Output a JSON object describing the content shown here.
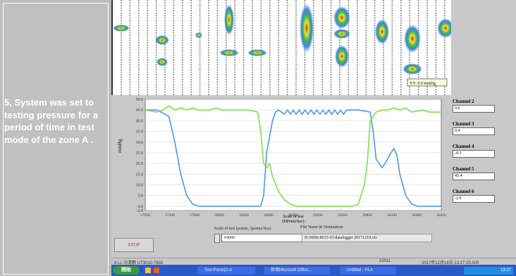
{
  "caption": {
    "text": "5, System was set to testing pressure for a period of time in test mode of the zone A ."
  },
  "heatmap": {
    "readout": "YV: 0.0 mmHg"
  },
  "chart_data": {
    "type": "line",
    "ylabel": "mmHg",
    "ylim": [
      -2.0,
      50.0
    ],
    "y_ticks": [
      "50.0",
      "45.0",
      "40.0",
      "35.0",
      "30.0",
      "25.0",
      "20.0",
      "15.0",
      "10.0",
      "5.0",
      "0.0",
      "-2.0"
    ],
    "x_ticks": [
      "27050",
      "27300",
      "27600",
      "28000",
      "28300",
      "28600",
      "28900",
      "29200",
      "29500",
      "29800",
      "30100",
      "30400",
      "30450"
    ],
    "xlabel": "Scale of test",
    "xlabel2": "(DPoint/Sec)",
    "series": [
      {
        "color": "#4c9be0",
        "values": [
          [
            0,
            45
          ],
          [
            4,
            45
          ],
          [
            8,
            42
          ],
          [
            10,
            30
          ],
          [
            12,
            15
          ],
          [
            14,
            5
          ],
          [
            16,
            1
          ],
          [
            18,
            0
          ],
          [
            31,
            0
          ],
          [
            39,
            0
          ],
          [
            40,
            5
          ],
          [
            41,
            25
          ],
          [
            43,
            40
          ],
          [
            44,
            44
          ],
          [
            45,
            45
          ],
          [
            47,
            43
          ],
          [
            48,
            45
          ],
          [
            49,
            43
          ],
          [
            50,
            45
          ],
          [
            51,
            43
          ],
          [
            52,
            45
          ],
          [
            53,
            43
          ],
          [
            54,
            45
          ],
          [
            55,
            43
          ],
          [
            56,
            45
          ],
          [
            57,
            43
          ],
          [
            58,
            45
          ],
          [
            59,
            43
          ],
          [
            60,
            45
          ],
          [
            61,
            43
          ],
          [
            62,
            45
          ],
          [
            63,
            43
          ],
          [
            64,
            45
          ],
          [
            65,
            43
          ],
          [
            66,
            45
          ],
          [
            67,
            43
          ],
          [
            68,
            45
          ],
          [
            72,
            45
          ],
          [
            76,
            44
          ],
          [
            77,
            35
          ],
          [
            78,
            22
          ],
          [
            80,
            18
          ],
          [
            81,
            20
          ],
          [
            83,
            25
          ],
          [
            84,
            27
          ],
          [
            85,
            24
          ],
          [
            86,
            15
          ],
          [
            88,
            5
          ],
          [
            90,
            1
          ],
          [
            92,
            0
          ],
          [
            100,
            0
          ]
        ]
      },
      {
        "color": "#7ee04c",
        "values": [
          [
            0,
            45
          ],
          [
            4,
            44
          ],
          [
            6,
            45
          ],
          [
            8,
            47
          ],
          [
            10,
            45
          ],
          [
            12,
            46
          ],
          [
            14,
            45
          ],
          [
            16,
            46
          ],
          [
            18,
            45
          ],
          [
            22,
            45
          ],
          [
            24,
            46
          ],
          [
            26,
            45
          ],
          [
            30,
            45
          ],
          [
            35,
            45
          ],
          [
            38,
            44
          ],
          [
            39,
            35
          ],
          [
            40,
            20
          ],
          [
            41,
            18
          ],
          [
            42,
            20
          ],
          [
            43,
            14
          ],
          [
            45,
            7
          ],
          [
            47,
            3
          ],
          [
            49,
            1
          ],
          [
            51,
            0
          ],
          [
            70,
            0
          ],
          [
            72,
            1
          ],
          [
            74,
            10
          ],
          [
            75,
            20
          ],
          [
            76,
            40
          ],
          [
            78,
            44
          ],
          [
            80,
            45
          ],
          [
            82,
            45
          ],
          [
            84,
            46
          ],
          [
            86,
            45
          ],
          [
            88,
            46
          ],
          [
            90,
            44
          ],
          [
            94,
            45
          ],
          [
            96,
            44
          ],
          [
            100,
            44
          ]
        ]
      }
    ]
  },
  "channels": [
    {
      "label": "Channel 2",
      "value": "0.6"
    },
    {
      "label": "Channel 3",
      "value": "0.4"
    },
    {
      "label": "Channel 4",
      "value": "-0.3"
    },
    {
      "label": "Channel 5",
      "value": "45.4"
    },
    {
      "label": "Channel 6",
      "value": "-2.9"
    }
  ],
  "controls": {
    "stop_label": "STOP",
    "scale_label": "Scale of test (points, 2points/Sec)",
    "scale_value": "64000",
    "file_label": "File Name & Destination",
    "file_path": "D:\\6006-8013-01\\datalogger 20171218.xls"
  },
  "status": {
    "left": "6 LL  中清數 UT3010-7632",
    "mid": "10011",
    "right": "2017年12月18日 13:27:25.500"
  },
  "taskbar": {
    "start": "開始",
    "items": [
      "Test Panel(2.vi",
      "新增Microsoft Office...",
      "Untitled - PLA"
    ],
    "clock": "13:27"
  },
  "colors": {
    "panel_gray": "#c0c0c0",
    "window_gray": "#c8c8c8",
    "taskbar_blue": "#2859c8",
    "series_blue": "#4c9be0",
    "series_green": "#7ee04c"
  }
}
